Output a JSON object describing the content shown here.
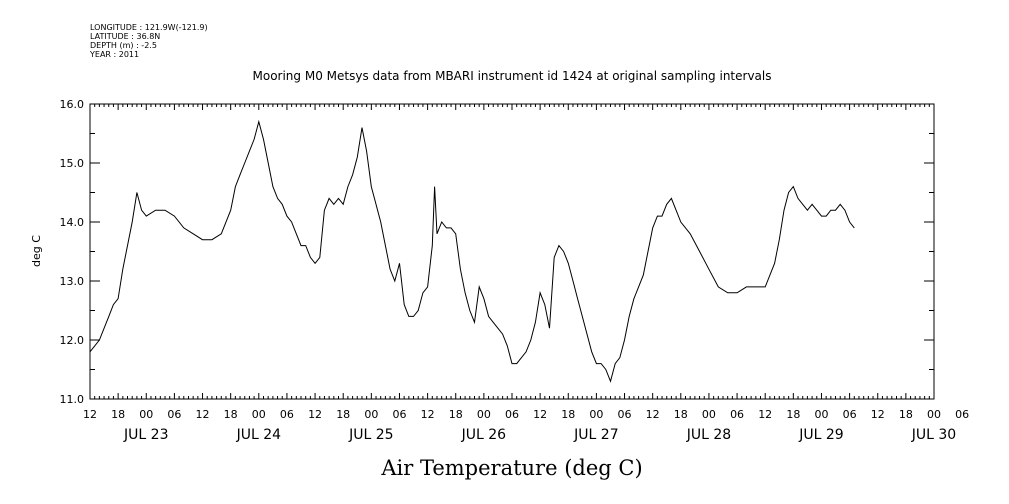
{
  "metadata": {
    "longitude": "LONGITUDE : 121.9W(-121.9)",
    "latitude": "LATITUDE : 36.8N",
    "depth": "DEPTH (m) : -2.5",
    "year": "YEAR : 2011"
  },
  "chart_data": {
    "type": "line",
    "title": "Mooring M0 Metsys data from MBARI instrument id 1424 at original sampling intervals",
    "xlabel": "Air Temperature (deg C)",
    "ylabel": "deg C",
    "ylim": [
      11.0,
      16.0
    ],
    "yticks": [
      "11.0",
      "12.0",
      "13.0",
      "14.0",
      "15.0",
      "16.0"
    ],
    "xlim_hours": [
      12,
      192
    ],
    "hour_tick_labels": [
      "12",
      "18",
      "00",
      "06",
      "12",
      "18",
      "00",
      "06",
      "12",
      "18",
      "00",
      "06",
      "12",
      "18",
      "00",
      "06",
      "12",
      "18",
      "00",
      "06",
      "12",
      "18",
      "00",
      "06",
      "12",
      "18",
      "00",
      "06",
      "12",
      "18",
      "00",
      "06"
    ],
    "date_labels": [
      "JUL 23",
      "JUL 24",
      "JUL 25",
      "JUL 26",
      "JUL 27",
      "JUL 28",
      "JUL 29",
      "JUL 30"
    ],
    "grid": false,
    "series": [
      {
        "values": [
          [
            12,
            11.8
          ],
          [
            13,
            11.9
          ],
          [
            14,
            12.0
          ],
          [
            15,
            12.2
          ],
          [
            16,
            12.4
          ],
          [
            17,
            12.6
          ],
          [
            18,
            12.7
          ],
          [
            19,
            13.2
          ],
          [
            20,
            13.6
          ],
          [
            21,
            14.0
          ],
          [
            22,
            14.5
          ],
          [
            23,
            14.2
          ],
          [
            24,
            14.1
          ],
          [
            26,
            14.2
          ],
          [
            28,
            14.2
          ],
          [
            30,
            14.1
          ],
          [
            32,
            13.9
          ],
          [
            34,
            13.8
          ],
          [
            36,
            13.7
          ],
          [
            38,
            13.7
          ],
          [
            40,
            13.8
          ],
          [
            42,
            14.2
          ],
          [
            43,
            14.6
          ],
          [
            44,
            14.8
          ],
          [
            45,
            15.0
          ],
          [
            46,
            15.2
          ],
          [
            47,
            15.4
          ],
          [
            48,
            15.7
          ],
          [
            49,
            15.4
          ],
          [
            50,
            15.0
          ],
          [
            51,
            14.6
          ],
          [
            52,
            14.4
          ],
          [
            53,
            14.3
          ],
          [
            54,
            14.1
          ],
          [
            55,
            14.0
          ],
          [
            56,
            13.8
          ],
          [
            57,
            13.6
          ],
          [
            58,
            13.6
          ],
          [
            59,
            13.4
          ],
          [
            60,
            13.3
          ],
          [
            61,
            13.4
          ],
          [
            62,
            14.2
          ],
          [
            63,
            14.4
          ],
          [
            64,
            14.3
          ],
          [
            65,
            14.4
          ],
          [
            66,
            14.3
          ],
          [
            67,
            14.6
          ],
          [
            68,
            14.8
          ],
          [
            69,
            15.1
          ],
          [
            70,
            15.6
          ],
          [
            71,
            15.2
          ],
          [
            72,
            14.6
          ],
          [
            73,
            14.3
          ],
          [
            74,
            14.0
          ],
          [
            75,
            13.6
          ],
          [
            76,
            13.2
          ],
          [
            77,
            13.0
          ],
          [
            78,
            13.3
          ],
          [
            79,
            12.6
          ],
          [
            80,
            12.4
          ],
          [
            81,
            12.4
          ],
          [
            82,
            12.5
          ],
          [
            83,
            12.8
          ],
          [
            84,
            12.9
          ],
          [
            85,
            13.6
          ],
          [
            85.5,
            14.6
          ],
          [
            86,
            13.8
          ],
          [
            87,
            14.0
          ],
          [
            88,
            13.9
          ],
          [
            89,
            13.9
          ],
          [
            90,
            13.8
          ],
          [
            91,
            13.2
          ],
          [
            92,
            12.8
          ],
          [
            93,
            12.5
          ],
          [
            94,
            12.3
          ],
          [
            95,
            12.9
          ],
          [
            96,
            12.7
          ],
          [
            97,
            12.4
          ],
          [
            98,
            12.3
          ],
          [
            99,
            12.2
          ],
          [
            100,
            12.1
          ],
          [
            101,
            11.9
          ],
          [
            102,
            11.6
          ],
          [
            103,
            11.6
          ],
          [
            104,
            11.7
          ],
          [
            105,
            11.8
          ],
          [
            106,
            12.0
          ],
          [
            107,
            12.3
          ],
          [
            108,
            12.8
          ],
          [
            109,
            12.6
          ],
          [
            110,
            12.2
          ],
          [
            111,
            13.4
          ],
          [
            112,
            13.6
          ],
          [
            113,
            13.5
          ],
          [
            114,
            13.3
          ],
          [
            115,
            13.0
          ],
          [
            116,
            12.7
          ],
          [
            117,
            12.4
          ],
          [
            118,
            12.1
          ],
          [
            119,
            11.8
          ],
          [
            120,
            11.6
          ],
          [
            121,
            11.6
          ],
          [
            122,
            11.5
          ],
          [
            123,
            11.3
          ],
          [
            124,
            11.6
          ],
          [
            125,
            11.7
          ],
          [
            126,
            12.0
          ],
          [
            127,
            12.4
          ],
          [
            128,
            12.7
          ],
          [
            129,
            12.9
          ],
          [
            130,
            13.1
          ],
          [
            131,
            13.5
          ],
          [
            132,
            13.9
          ],
          [
            133,
            14.1
          ],
          [
            134,
            14.1
          ],
          [
            135,
            14.3
          ],
          [
            136,
            14.4
          ],
          [
            137,
            14.2
          ],
          [
            138,
            14.0
          ],
          [
            140,
            13.8
          ],
          [
            142,
            13.5
          ],
          [
            144,
            13.2
          ],
          [
            146,
            12.9
          ],
          [
            148,
            12.8
          ],
          [
            150,
            12.8
          ],
          [
            152,
            12.9
          ],
          [
            154,
            12.9
          ],
          [
            156,
            12.9
          ],
          [
            158,
            13.3
          ],
          [
            159,
            13.7
          ],
          [
            160,
            14.2
          ],
          [
            161,
            14.5
          ],
          [
            162,
            14.6
          ],
          [
            163,
            14.4
          ],
          [
            164,
            14.3
          ],
          [
            165,
            14.2
          ],
          [
            166,
            14.3
          ],
          [
            167,
            14.2
          ],
          [
            168,
            14.1
          ],
          [
            169,
            14.1
          ],
          [
            170,
            14.2
          ],
          [
            171,
            14.2
          ],
          [
            172,
            14.3
          ],
          [
            173,
            14.2
          ],
          [
            174,
            14.0
          ],
          [
            175,
            13.9
          ]
        ]
      }
    ]
  }
}
